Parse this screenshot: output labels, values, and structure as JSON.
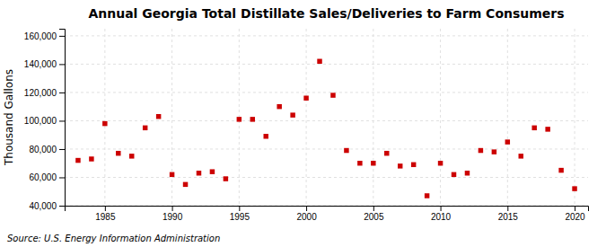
{
  "chart_data": {
    "type": "scatter",
    "title": "Annual Georgia Total Distillate Sales/Deliveries to Farm Consumers",
    "ylabel": "Thousand Gallons",
    "source": "Source: U.S. Energy Information Administration",
    "x": [
      1983,
      1984,
      1985,
      1986,
      1987,
      1988,
      1989,
      1990,
      1991,
      1992,
      1993,
      1994,
      1995,
      1996,
      1997,
      1998,
      1999,
      2000,
      2001,
      2002,
      2003,
      2004,
      2005,
      2006,
      2007,
      2008,
      2009,
      2010,
      2011,
      2012,
      2013,
      2014,
      2015,
      2016,
      2017,
      2018,
      2019,
      2020
    ],
    "values": [
      72000,
      73000,
      98000,
      77000,
      75000,
      95000,
      103000,
      62000,
      55000,
      63000,
      64000,
      59000,
      101000,
      101000,
      89000,
      110000,
      104000,
      116000,
      142000,
      118000,
      79000,
      70000,
      70000,
      77000,
      68000,
      69000,
      47000,
      70000,
      62000,
      63000,
      79000,
      78000,
      85000,
      75000,
      95000,
      94000,
      65000,
      52000
    ],
    "color": "#cc0000",
    "marker": "square",
    "xlim": [
      1982,
      2021
    ],
    "xticks": [
      1985,
      1990,
      1995,
      2000,
      2005,
      2010,
      2015,
      2020
    ],
    "ylim": [
      40000,
      165000
    ],
    "yticks": [
      {
        "value": 40000,
        "label": "40,000"
      },
      {
        "value": 60000,
        "label": "60,000"
      },
      {
        "value": 80000,
        "label": "80,000"
      },
      {
        "value": 100000,
        "label": "100,000"
      },
      {
        "value": 120000,
        "label": "120,000"
      },
      {
        "value": 140000,
        "label": "140,000"
      },
      {
        "value": 160000,
        "label": "160,000"
      }
    ],
    "grid": true
  }
}
